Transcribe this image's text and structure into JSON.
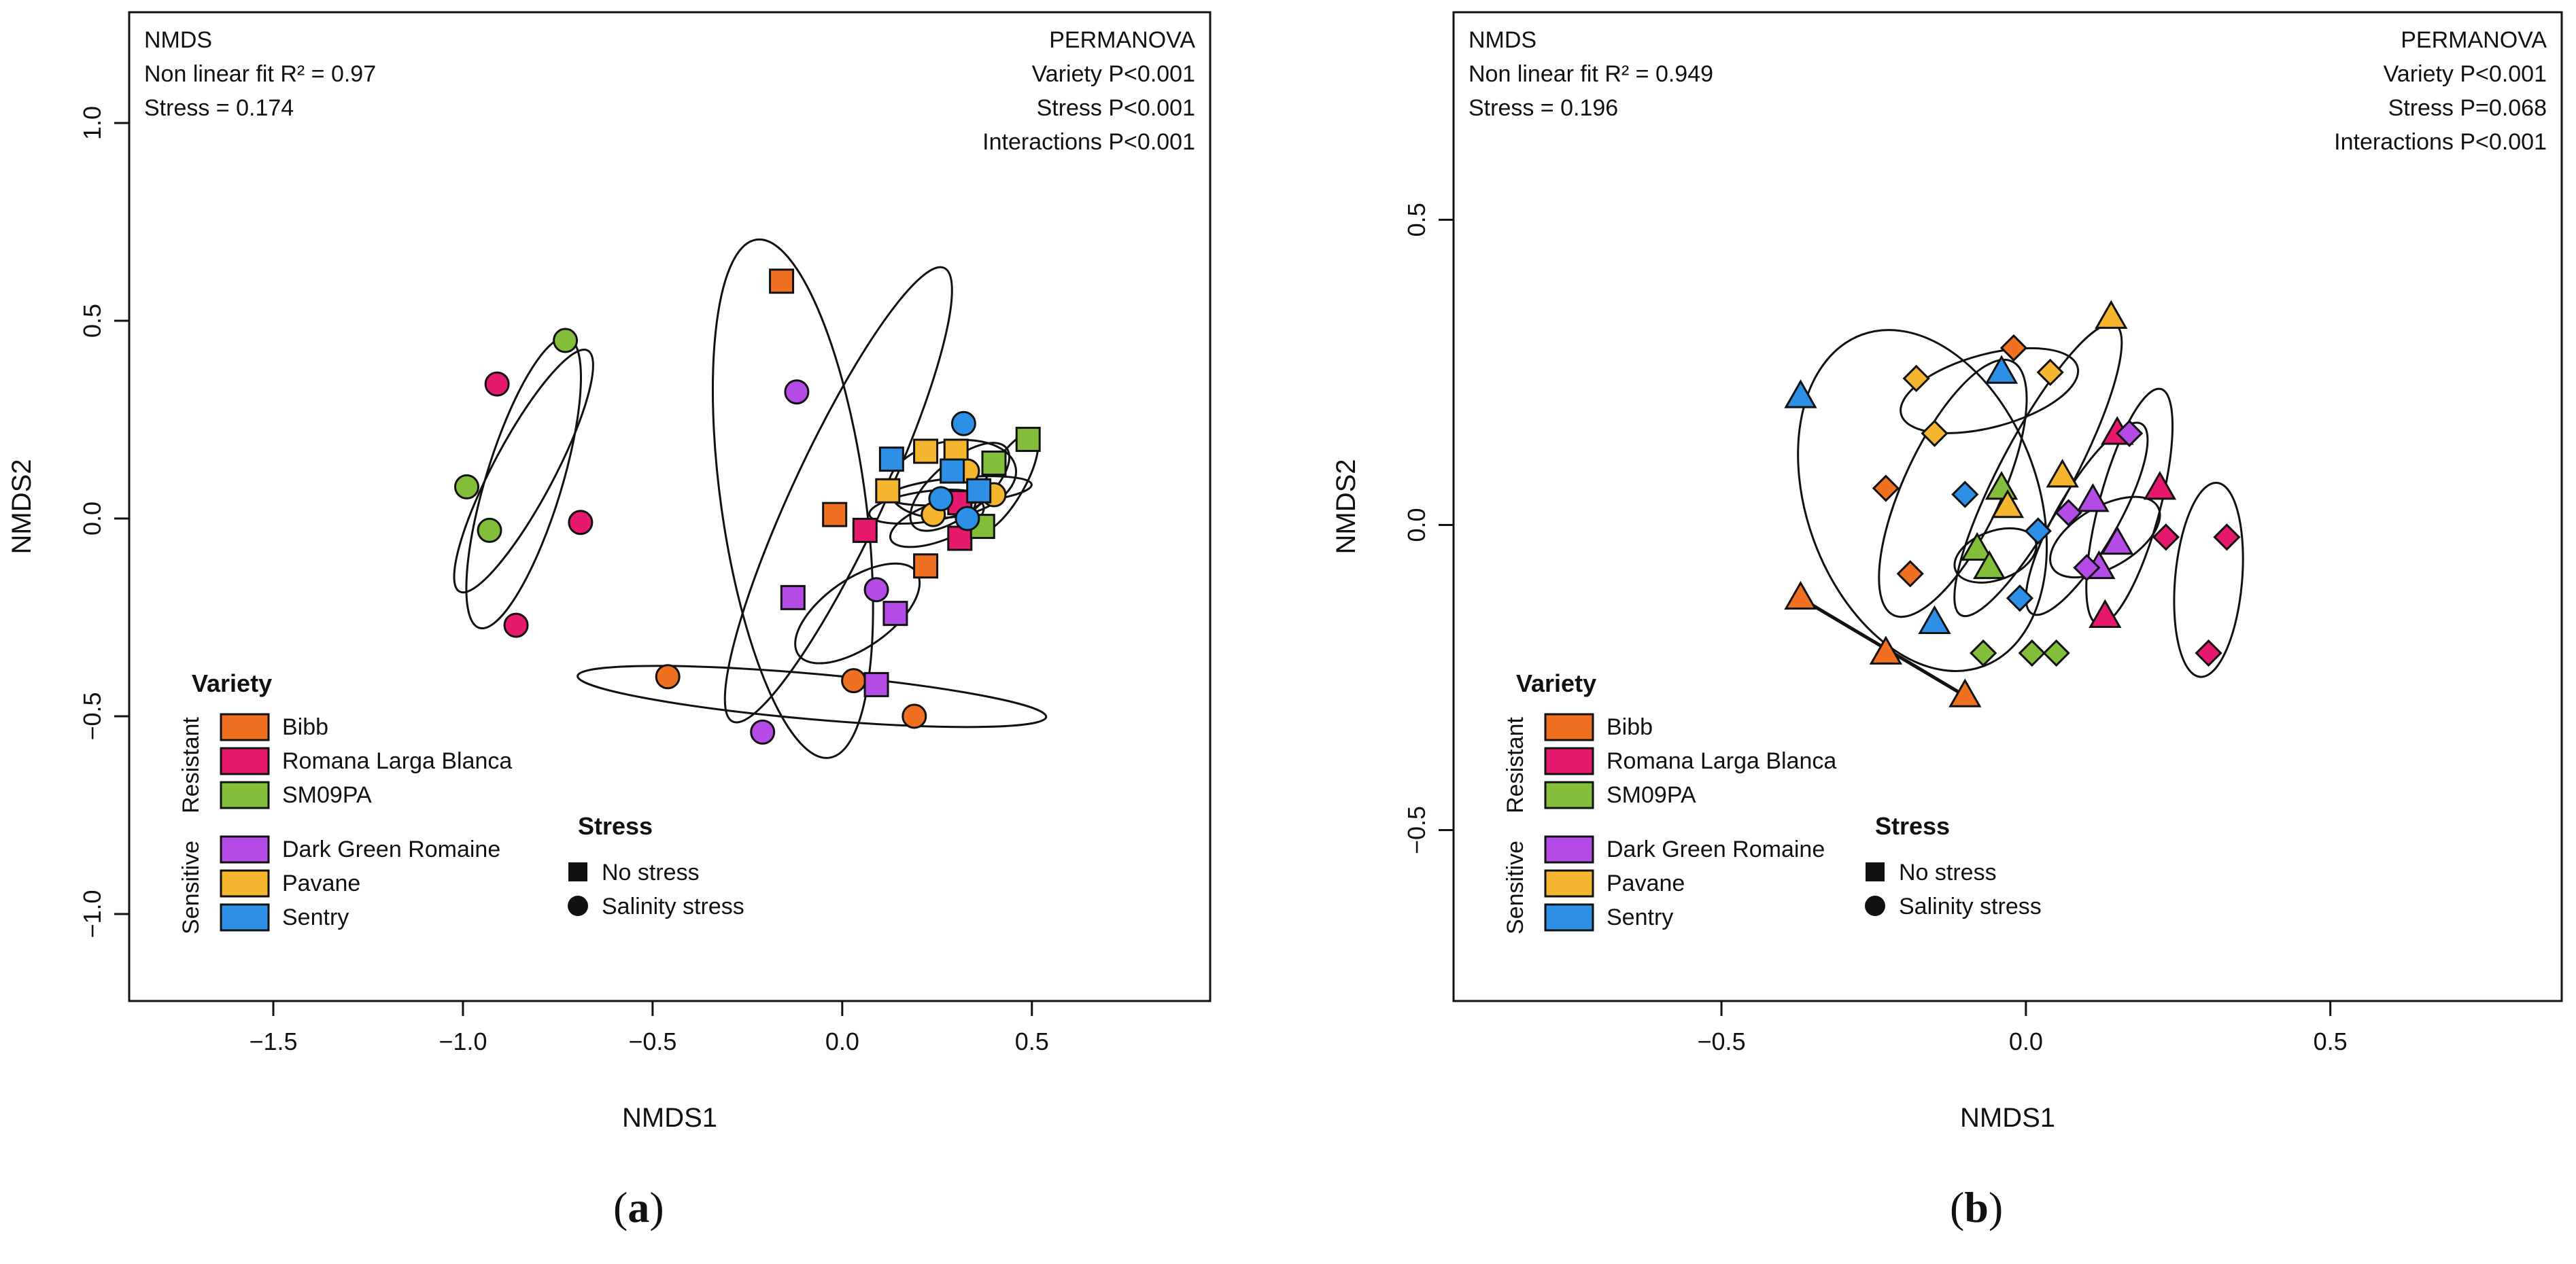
{
  "colors": {
    "Bibb": "#f07022",
    "Romana Larga Blanca": "#e6196e",
    "SM09PA": "#82be3a",
    "Dark Green Romaine": "#b44be6",
    "Pavane": "#f5b52e",
    "Sentry": "#2d8fe6"
  },
  "panel_labels": [
    "a",
    "b"
  ],
  "chart_data": [
    {
      "id": "a",
      "type": "scatter",
      "xlabel": "NMDS1",
      "ylabel": "NMDS2",
      "xlim": [
        -1.88,
        0.97
      ],
      "ylim": [
        -1.22,
        1.28
      ],
      "xticks": [
        -1.5,
        -1.0,
        -0.5,
        0.0,
        0.5
      ],
      "xtick_labels": [
        "−1.5",
        "−1.0",
        "−0.5",
        "0.0",
        "0.5"
      ],
      "yticks": [
        -1.0,
        -0.5,
        0.0,
        0.5,
        1.0
      ],
      "ytick_labels": [
        "−1.0",
        "−0.5",
        "0.0",
        "0.5",
        "1.0"
      ],
      "annot_left": [
        "NMDS",
        "Non linear fit R² = 0.97",
        "Stress = 0.174"
      ],
      "annot_right": [
        "PERMANOVA",
        "Variety P<0.001",
        "Stress P<0.001",
        "Interactions P<0.001"
      ],
      "legend": {
        "variety_title": "Variety",
        "groups": [
          {
            "label": "Resistant",
            "items": [
              "Bibb",
              "Romana Larga Blanca",
              "SM09PA"
            ]
          },
          {
            "label": "Sensitive",
            "items": [
              "Dark Green Romaine",
              "Pavane",
              "Sentry"
            ]
          }
        ],
        "stress_title": "Stress",
        "stress_items": [
          {
            "shape": "square",
            "label": "No stress"
          },
          {
            "shape": "circle",
            "label": "Salinity stress"
          }
        ]
      },
      "points": [
        {
          "variety": "Bibb",
          "shape": "square",
          "x": -0.16,
          "y": 0.6
        },
        {
          "variety": "Bibb",
          "shape": "square",
          "x": -0.02,
          "y": 0.01
        },
        {
          "variety": "Bibb",
          "shape": "square",
          "x": 0.22,
          "y": -0.12
        },
        {
          "variety": "Bibb",
          "shape": "circle",
          "x": -0.46,
          "y": -0.4
        },
        {
          "variety": "Bibb",
          "shape": "circle",
          "x": 0.03,
          "y": -0.41
        },
        {
          "variety": "Bibb",
          "shape": "circle",
          "x": 0.19,
          "y": -0.5
        },
        {
          "variety": "Romana Larga Blanca",
          "shape": "circle",
          "x": -0.91,
          "y": 0.34
        },
        {
          "variety": "Romana Larga Blanca",
          "shape": "circle",
          "x": -0.69,
          "y": -0.01
        },
        {
          "variety": "Romana Larga Blanca",
          "shape": "circle",
          "x": -0.86,
          "y": -0.27
        },
        {
          "variety": "Romana Larga Blanca",
          "shape": "square",
          "x": 0.06,
          "y": -0.03
        },
        {
          "variety": "Romana Larga Blanca",
          "shape": "square",
          "x": 0.31,
          "y": -0.05
        },
        {
          "variety": "Romana Larga Blanca",
          "shape": "square",
          "x": 0.31,
          "y": 0.04
        },
        {
          "variety": "SM09PA",
          "shape": "circle",
          "x": -0.73,
          "y": 0.45
        },
        {
          "variety": "SM09PA",
          "shape": "circle",
          "x": -0.99,
          "y": 0.08
        },
        {
          "variety": "SM09PA",
          "shape": "circle",
          "x": -0.93,
          "y": -0.03
        },
        {
          "variety": "SM09PA",
          "shape": "square",
          "x": 0.49,
          "y": 0.2
        },
        {
          "variety": "SM09PA",
          "shape": "square",
          "x": 0.4,
          "y": 0.14
        },
        {
          "variety": "SM09PA",
          "shape": "square",
          "x": 0.37,
          "y": -0.02
        },
        {
          "variety": "Dark Green Romaine",
          "shape": "circle",
          "x": -0.12,
          "y": 0.32
        },
        {
          "variety": "Dark Green Romaine",
          "shape": "circle",
          "x": 0.09,
          "y": -0.18
        },
        {
          "variety": "Dark Green Romaine",
          "shape": "circle",
          "x": -0.21,
          "y": -0.54
        },
        {
          "variety": "Dark Green Romaine",
          "shape": "square",
          "x": -0.13,
          "y": -0.2
        },
        {
          "variety": "Dark Green Romaine",
          "shape": "square",
          "x": 0.14,
          "y": -0.24
        },
        {
          "variety": "Dark Green Romaine",
          "shape": "square",
          "x": 0.09,
          "y": -0.42
        },
        {
          "variety": "Pavane",
          "shape": "square",
          "x": 0.12,
          "y": 0.07
        },
        {
          "variety": "Pavane",
          "shape": "square",
          "x": 0.22,
          "y": 0.17
        },
        {
          "variety": "Pavane",
          "shape": "square",
          "x": 0.3,
          "y": 0.17
        },
        {
          "variety": "Pavane",
          "shape": "circle",
          "x": 0.24,
          "y": 0.01
        },
        {
          "variety": "Pavane",
          "shape": "circle",
          "x": 0.33,
          "y": 0.12
        },
        {
          "variety": "Pavane",
          "shape": "circle",
          "x": 0.4,
          "y": 0.06
        },
        {
          "variety": "Sentry",
          "shape": "square",
          "x": 0.13,
          "y": 0.15
        },
        {
          "variety": "Sentry",
          "shape": "square",
          "x": 0.29,
          "y": 0.12
        },
        {
          "variety": "Sentry",
          "shape": "square",
          "x": 0.36,
          "y": 0.07
        },
        {
          "variety": "Sentry",
          "shape": "circle",
          "x": 0.32,
          "y": 0.24
        },
        {
          "variety": "Sentry",
          "shape": "circle",
          "x": 0.26,
          "y": 0.05
        },
        {
          "variety": "Sentry",
          "shape": "circle",
          "x": 0.33,
          "y": 0.0
        }
      ],
      "ellipses": [
        {
          "cx": -0.84,
          "cy": 0.09,
          "rx": 0.4,
          "ry": 0.1,
          "angle": 73
        },
        {
          "cx": -0.84,
          "cy": 0.12,
          "rx": 0.36,
          "ry": 0.08,
          "angle": 62
        },
        {
          "cx": -0.13,
          "cy": 0.05,
          "rx": 0.69,
          "ry": 0.19,
          "angle": 98
        },
        {
          "cx": -0.01,
          "cy": 0.06,
          "rx": 0.66,
          "ry": 0.12,
          "angle": 65
        },
        {
          "cx": -0.08,
          "cy": -0.45,
          "rx": 0.62,
          "ry": 0.06,
          "angle": -5
        },
        {
          "cx": 0.04,
          "cy": -0.24,
          "rx": 0.19,
          "ry": 0.09,
          "angle": 35
        },
        {
          "cx": 0.29,
          "cy": 0.1,
          "rx": 0.17,
          "ry": 0.1,
          "angle": 10
        },
        {
          "cx": 0.31,
          "cy": 0.08,
          "rx": 0.16,
          "ry": 0.07,
          "angle": 40
        },
        {
          "cx": 0.31,
          "cy": 0.07,
          "rx": 0.19,
          "ry": 0.035,
          "angle": 5
        },
        {
          "cx": 0.43,
          "cy": 0.09,
          "rx": 0.15,
          "ry": 0.05,
          "angle": 60
        },
        {
          "cx": 0.25,
          "cy": -0.01,
          "rx": 0.13,
          "ry": 0.05,
          "angle": 20
        },
        {
          "cx": 0.22,
          "cy": 0.03,
          "rx": 0.15,
          "ry": 0.04,
          "angle": 8
        }
      ]
    },
    {
      "id": "b",
      "type": "scatter",
      "xlabel": "NMDS1",
      "ylabel": "NMDS2",
      "xlim": [
        -0.94,
        0.88
      ],
      "ylim": [
        -0.78,
        0.84
      ],
      "xticks": [
        -0.5,
        0.0,
        0.5
      ],
      "xtick_labels": [
        "−0.5",
        "0.0",
        "0.5"
      ],
      "yticks": [
        -0.5,
        0.0,
        0.5
      ],
      "ytick_labels": [
        "−0.5",
        "0.0",
        "0.5"
      ],
      "annot_left": [
        "NMDS",
        "Non linear fit R² = 0.949",
        "Stress = 0.196"
      ],
      "annot_right": [
        "PERMANOVA",
        "Variety P<0.001",
        "Stress P=0.068",
        "Interactions P<0.001"
      ],
      "legend": {
        "variety_title": "Variety",
        "groups": [
          {
            "label": "Resistant",
            "items": [
              "Bibb",
              "Romana Larga Blanca",
              "SM09PA"
            ]
          },
          {
            "label": "Sensitive",
            "items": [
              "Dark Green Romaine",
              "Pavane",
              "Sentry"
            ]
          }
        ],
        "stress_title": "Stress",
        "stress_items": [
          {
            "shape": "square",
            "label": "No stress"
          },
          {
            "shape": "circle",
            "label": "Salinity stress"
          }
        ]
      },
      "points": [
        {
          "variety": "Bibb",
          "shape": "triangle",
          "x": -0.37,
          "y": -0.12
        },
        {
          "variety": "Bibb",
          "shape": "triangle",
          "x": -0.23,
          "y": -0.21
        },
        {
          "variety": "Bibb",
          "shape": "triangle",
          "x": -0.1,
          "y": -0.28
        },
        {
          "variety": "Bibb",
          "shape": "diamond",
          "x": -0.23,
          "y": 0.06
        },
        {
          "variety": "Bibb",
          "shape": "diamond",
          "x": -0.19,
          "y": -0.08
        },
        {
          "variety": "Bibb",
          "shape": "diamond",
          "x": -0.02,
          "y": 0.29
        },
        {
          "variety": "Romana Larga Blanca",
          "shape": "triangle",
          "x": 0.15,
          "y": 0.15
        },
        {
          "variety": "Romana Larga Blanca",
          "shape": "triangle",
          "x": 0.22,
          "y": 0.06
        },
        {
          "variety": "Romana Larga Blanca",
          "shape": "triangle",
          "x": 0.13,
          "y": -0.15
        },
        {
          "variety": "Romana Larga Blanca",
          "shape": "diamond",
          "x": 0.23,
          "y": -0.02
        },
        {
          "variety": "Romana Larga Blanca",
          "shape": "diamond",
          "x": 0.33,
          "y": -0.02
        },
        {
          "variety": "Romana Larga Blanca",
          "shape": "diamond",
          "x": 0.3,
          "y": -0.21
        },
        {
          "variety": "SM09PA",
          "shape": "triangle",
          "x": -0.04,
          "y": 0.06
        },
        {
          "variety": "SM09PA",
          "shape": "triangle",
          "x": -0.08,
          "y": -0.04
        },
        {
          "variety": "SM09PA",
          "shape": "triangle",
          "x": -0.06,
          "y": -0.07
        },
        {
          "variety": "SM09PA",
          "shape": "diamond",
          "x": -0.07,
          "y": -0.21
        },
        {
          "variety": "SM09PA",
          "shape": "diamond",
          "x": 0.01,
          "y": -0.21
        },
        {
          "variety": "SM09PA",
          "shape": "diamond",
          "x": 0.05,
          "y": -0.21
        },
        {
          "variety": "Dark Green Romaine",
          "shape": "triangle",
          "x": 0.11,
          "y": 0.04
        },
        {
          "variety": "Dark Green Romaine",
          "shape": "triangle",
          "x": 0.15,
          "y": -0.03
        },
        {
          "variety": "Dark Green Romaine",
          "shape": "triangle",
          "x": 0.12,
          "y": -0.07
        },
        {
          "variety": "Dark Green Romaine",
          "shape": "diamond",
          "x": 0.17,
          "y": 0.15
        },
        {
          "variety": "Dark Green Romaine",
          "shape": "diamond",
          "x": 0.07,
          "y": 0.02
        },
        {
          "variety": "Dark Green Romaine",
          "shape": "diamond",
          "x": 0.1,
          "y": -0.07
        },
        {
          "variety": "Pavane",
          "shape": "triangle",
          "x": 0.14,
          "y": 0.34
        },
        {
          "variety": "Pavane",
          "shape": "triangle",
          "x": 0.06,
          "y": 0.08
        },
        {
          "variety": "Pavane",
          "shape": "triangle",
          "x": -0.03,
          "y": 0.03
        },
        {
          "variety": "Pavane",
          "shape": "diamond",
          "x": -0.18,
          "y": 0.24
        },
        {
          "variety": "Pavane",
          "shape": "diamond",
          "x": -0.15,
          "y": 0.15
        },
        {
          "variety": "Pavane",
          "shape": "diamond",
          "x": 0.04,
          "y": 0.25
        },
        {
          "variety": "Sentry",
          "shape": "triangle",
          "x": -0.37,
          "y": 0.21
        },
        {
          "variety": "Sentry",
          "shape": "triangle",
          "x": -0.04,
          "y": 0.25
        },
        {
          "variety": "Sentry",
          "shape": "triangle",
          "x": -0.15,
          "y": -0.16
        },
        {
          "variety": "Sentry",
          "shape": "diamond",
          "x": -0.1,
          "y": 0.05
        },
        {
          "variety": "Sentry",
          "shape": "diamond",
          "x": 0.02,
          "y": -0.01
        },
        {
          "variety": "Sentry",
          "shape": "diamond",
          "x": -0.01,
          "y": -0.12
        }
      ],
      "ellipses": [
        {
          "cx": -0.17,
          "cy": 0.04,
          "rx": 0.29,
          "ry": 0.19,
          "angle": 110
        },
        {
          "cx": -0.06,
          "cy": 0.22,
          "rx": 0.15,
          "ry": 0.06,
          "angle": 15
        },
        {
          "cx": 0.02,
          "cy": 0.09,
          "rx": 0.27,
          "ry": 0.06,
          "angle": 62
        },
        {
          "cx": -0.12,
          "cy": 0.06,
          "rx": 0.23,
          "ry": 0.08,
          "angle": 65
        },
        {
          "cx": 0.1,
          "cy": 0.01,
          "rx": 0.18,
          "ry": 0.05,
          "angle": 60
        },
        {
          "cx": 0.17,
          "cy": 0.03,
          "rx": 0.2,
          "ry": 0.05,
          "angle": 75
        },
        {
          "cx": 0.3,
          "cy": -0.09,
          "rx": 0.16,
          "ry": 0.055,
          "angle": 85
        },
        {
          "cx": 0.13,
          "cy": -0.02,
          "rx": 0.1,
          "ry": 0.05,
          "angle": 30
        },
        {
          "cx": -0.05,
          "cy": -0.05,
          "rx": 0.07,
          "ry": 0.04,
          "angle": 20
        }
      ]
    }
  ]
}
